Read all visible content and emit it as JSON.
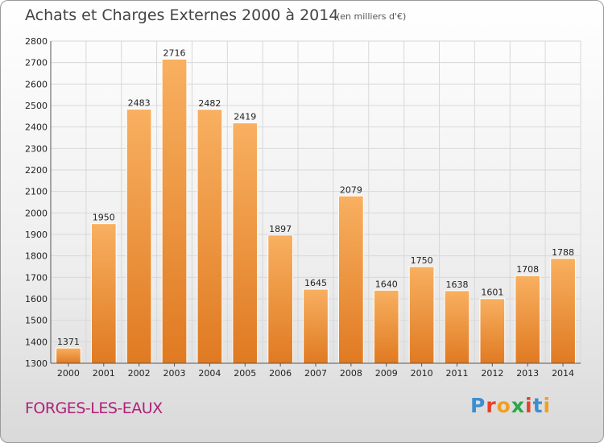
{
  "header": {
    "title": "Achats et Charges Externes 2000 à 2014",
    "unit": "(en milliers d'€)"
  },
  "footer": {
    "commune": "FORGES-LES-EAUX",
    "logo_letters": [
      "P",
      "r",
      "o",
      "x",
      "i",
      "t",
      "i"
    ],
    "logo_colors": [
      "#3b8fd0",
      "#e8402a",
      "#f0a020",
      "#2aa84a",
      "#e8402a",
      "#3b8fd0",
      "#f0a020"
    ]
  },
  "colors": {
    "bar_light": "#f8b060",
    "bar_dark": "#e07a22",
    "grid": "#d8d8d8",
    "commune": "#b0207a"
  },
  "chart_data": {
    "type": "bar",
    "title": "Achats et Charges Externes 2000 à 2014",
    "xlabel": "",
    "ylabel": "(en milliers d'€)",
    "categories": [
      "2000",
      "2001",
      "2002",
      "2003",
      "2004",
      "2005",
      "2006",
      "2007",
      "2008",
      "2009",
      "2010",
      "2011",
      "2012",
      "2013",
      "2014"
    ],
    "values": [
      1371,
      1950,
      2483,
      2716,
      2482,
      2419,
      1897,
      1645,
      2079,
      1640,
      1750,
      1638,
      1601,
      1708,
      1788
    ],
    "ylim": [
      1300,
      2800
    ],
    "yticks": [
      1300,
      1400,
      1500,
      1600,
      1700,
      1800,
      1900,
      2000,
      2100,
      2200,
      2300,
      2400,
      2500,
      2600,
      2700,
      2800
    ],
    "grid": true
  }
}
